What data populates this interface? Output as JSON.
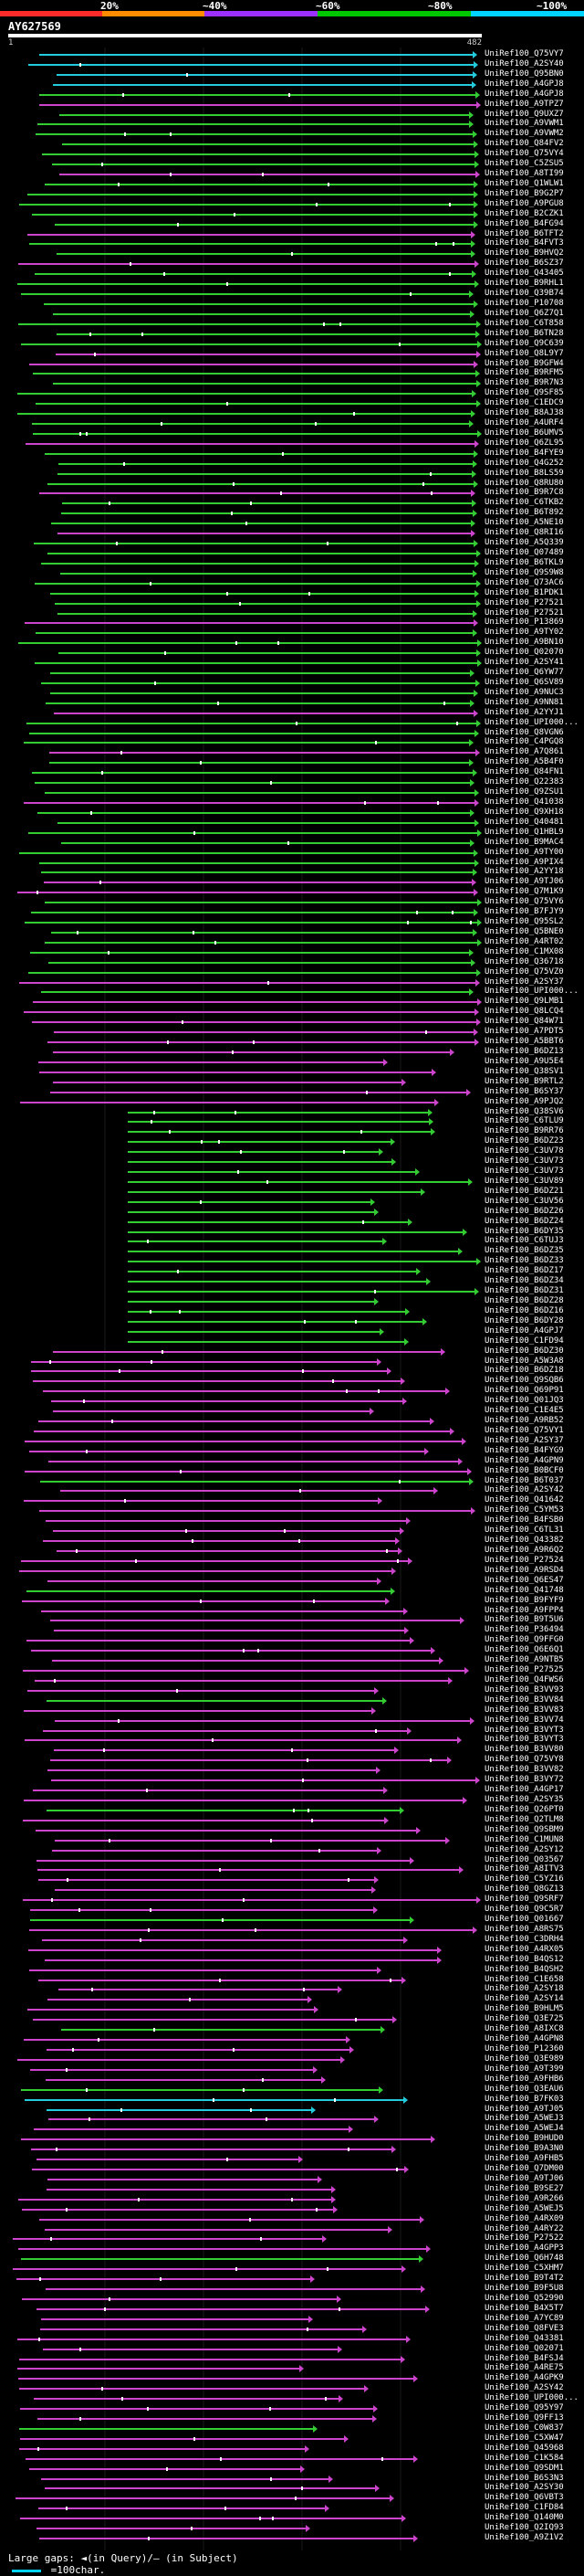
{
  "legend": {
    "pct_labels": [
      "20%",
      "~40%",
      "~60%",
      "~80%",
      "~100%"
    ],
    "colors": [
      "#ff2a2a",
      "#ff8c00",
      "#9b30ff",
      "#00c800",
      "#00d3ff"
    ]
  },
  "query": {
    "title": "AY627569",
    "start": "1",
    "end": "482"
  },
  "footer": {
    "text": "Large gaps: ◄(in Query)/– (in Subject)",
    "scale": "=100char."
  },
  "colors": {
    "green": "#33cc33",
    "magenta": "#cc44cc",
    "cyan": "#22ccdd",
    "dot": "#ffffff"
  },
  "hits": [
    "UniRef100_Q75VY7",
    "UniRef100_A2SY40",
    "UniRef100_Q95BN0",
    "UniRef100_A4GPJ8",
    "UniRef100_A4GPJ8",
    "UniRef100_A9TPZ7",
    "UniRef100_Q9UXZ7",
    "UniRef100_A9VWM1",
    "UniRef100_A9VWM2",
    "UniRef100_Q84FV2",
    "UniRef100_Q75VY4",
    "UniRef100_C5ZSU5",
    "UniRef100_A8TI99",
    "UniRef100_Q1WLW1",
    "UniRef100_B9G2P7",
    "UniRef100_A9PGU8",
    "UniRef100_B2CZK1",
    "UniRef100_B4FG94",
    "UniRef100_B6TFT2",
    "UniRef100_B4FVT3",
    "UniRef100_B9HVQ2",
    "UniRef100_B6SZ37",
    "UniRef100_Q43405",
    "UniRef100_B9RHL1",
    "UniRef100_Q39B74",
    "UniRef100_P10708",
    "UniRef100_Q6Z7Q1",
    "UniRef100_C6T858",
    "UniRef100_B6TN28",
    "UniRef100_Q9C639",
    "UniRef100_Q8L9Y7",
    "UniRef100_B9GFW4",
    "UniRef100_B9RFM5",
    "UniRef100_B9R7N3",
    "UniRef100_Q9SF85",
    "UniRef100_C1EDC9",
    "UniRef100_B8AJ38",
    "UniRef100_A4URF4",
    "UniRef100_B6UMV5",
    "UniRef100_Q6ZL95",
    "UniRef100_B4FYE9",
    "UniRef100_Q4G252",
    "UniRef100_B8LS59",
    "UniRef100_Q8RU80",
    "UniRef100_B9R7C8",
    "UniRef100_C6TKB2",
    "UniRef100_B6T892",
    "UniRef100_A5NE10",
    "UniRef100_Q8RI16",
    "UniRef100_A5Q339",
    "UniRef100_Q07489",
    "UniRef100_B6TKL9",
    "UniRef100_Q9S9W8",
    "UniRef100_Q73AC6",
    "UniRef100_B1PDK1",
    "UniRef100_P27521",
    "UniRef100_P27521",
    "UniRef100_P13869",
    "UniRef100_A9TY02",
    "UniRef100_A9BN10",
    "UniRef100_Q02070",
    "UniRef100_A2SY41",
    "UniRef100_Q6YW77",
    "UniRef100_Q6SV89",
    "UniRef100_A9NUC3",
    "UniRef100_A9NN81",
    "UniRef100_A2YYJ1",
    "UniRef100_UPI000...",
    "UniRef100_Q8VGN6",
    "UniRef100_C4PGQ8",
    "UniRef100_A7Q861",
    "UniRef100_A5B4F0",
    "UniRef100_Q84FN1",
    "UniRef100_Q22383",
    "UniRef100_Q9ZSU1",
    "UniRef100_Q41038",
    "UniRef100_Q9XH18",
    "UniRef100_Q40481",
    "UniRef100_Q1HBL9",
    "UniRef100_B9MAC4",
    "UniRef100_A9TY00",
    "UniRef100_A9PIX4",
    "UniRef100_A2YY18",
    "UniRef100_A9TJ06",
    "UniRef100_Q7M1K9",
    "UniRef100_Q75VY6",
    "UniRef100_B7FJY9",
    "UniRef100_Q95SL2",
    "UniRef100_Q5BNE0",
    "UniRef100_A4RT02",
    "UniRef100_C1MX08",
    "UniRef100_Q36718",
    "UniRef100_Q75VZ0",
    "UniRef100_A2SY37",
    "UniRef100_UPI000...",
    "UniRef100_Q9LMB1",
    "UniRef100_Q8LCQ4",
    "UniRef100_Q84W71",
    "UniRef100_A7PDT5",
    "UniRef100_A5BBT6",
    "UniRef100_B6DZ13",
    "UniRef100_A9U5E4",
    "UniRef100_Q38SV1",
    "UniRef100_B9RTL2",
    "UniRef100_B6SY37",
    "UniRef100_A9PJQ2",
    "UniRef100_Q38SV6",
    "UniRef100_C6TLU9",
    "UniRef100_B9RR76",
    "UniRef100_B6DZ23",
    "UniRef100_C3UV78",
    "UniRef100_C3UV73",
    "UniRef100_C3UV73",
    "UniRef100_C3UV89",
    "UniRef100_B6DZ21",
    "UniRef100_C3UV56",
    "UniRef100_B6DZ26",
    "UniRef100_B6DZ24",
    "UniRef100_B6DY35",
    "UniRef100_C6TUJ3",
    "UniRef100_B6DZ35",
    "UniRef100_B6DZ33",
    "UniRef100_B6DZ17",
    "UniRef100_B6DZ34",
    "UniRef100_B6DZ31",
    "UniRef100_B6DZ28",
    "UniRef100_B6DZ16",
    "UniRef100_B6DY28",
    "UniRef100_A4GPJ7",
    "UniRef100_C1FD94",
    "UniRef100_B6DZ30",
    "UniRef100_A5W3A8",
    "UniRef100_B6DZ18",
    "UniRef100_Q9SQB6",
    "UniRef100_Q69P91",
    "UniRef100_Q01JQ3",
    "UniRef100_C1E4E5",
    "UniRef100_A9RB52",
    "UniRef100_Q75VY1",
    "UniRef100_A2SY37",
    "UniRef100_B4FYG9",
    "UniRef100_A4GPN9",
    "UniRef100_B0BCF0",
    "UniRef100_B6T037",
    "UniRef100_A2SY42",
    "UniRef100_Q41642",
    "UniRef100_C5YM53",
    "UniRef100_B4FSB0",
    "UniRef100_C6TL31",
    "UniRef100_Q43382",
    "UniRef100_A9R6Q2",
    "UniRef100_P27524",
    "UniRef100_A9RSD4",
    "UniRef100_Q6ES47",
    "UniRef100_Q41748",
    "UniRef100_B9FYF9",
    "UniRef100_A9FPP4",
    "UniRef100_B9T5U6",
    "UniRef100_P36494",
    "UniRef100_Q9FFG0",
    "UniRef100_Q6E6Q1",
    "UniRef100_A9NTB5",
    "UniRef100_P27525",
    "UniRef100_Q4FWS6",
    "UniRef100_B3VV93",
    "UniRef100_B3VV84",
    "UniRef100_B3VV83",
    "UniRef100_B3VV74",
    "UniRef100_B3VYT3",
    "UniRef100_B3VYT3",
    "UniRef100_B3VV80",
    "UniRef100_Q75VY8",
    "UniRef100_B3VV82",
    "UniRef100_B3VY72",
    "UniRef100_A4GP17",
    "UniRef100_A2SY35",
    "UniRef100_Q26PT0",
    "UniRef100_Q2TLM8",
    "UniRef100_Q9SBM9",
    "UniRef100_C1MUN8",
    "UniRef100_A2SY12",
    "UniRef100_Q03567",
    "UniRef100_A8ITV3",
    "UniRef100_C5YZ16",
    "UniRef100_Q8GZ13",
    "UniRef100_Q9SRF7",
    "UniRef100_Q9C5R7",
    "UniRef100_Q01667",
    "UniRef100_A8RS75",
    "UniRef100_C3DRH4",
    "UniRef100_A4RX05",
    "UniRef100_B4QS12",
    "UniRef100_B4QSH2",
    "UniRef100_C1E658",
    "UniRef100_A2SY18",
    "UniRef100_A2SY14",
    "UniRef100_B9HLM5",
    "UniRef100_Q3E725",
    "UniRef100_A8IXC8",
    "UniRef100_A4GPN8",
    "UniRef100_P12360",
    "UniRef100_Q3E989",
    "UniRef100_A9T399",
    "UniRef100_A9FHB6",
    "UniRef100_Q3EAU6",
    "UniRef100_B7FK03",
    "UniRef100_A9TJ05",
    "UniRef100_A5WEJ3",
    "UniRef100_A5WEJ4",
    "UniRef100_B9HUD0",
    "UniRef100_B9A3N0",
    "UniRef100_A9FHB5",
    "UniRef100_Q7DM00",
    "UniRef100_A9TJ06",
    "UniRef100_B9SE27",
    "UniRef100_A9R266",
    "UniRef100_A5WEJ5",
    "UniRef100_A4RX09",
    "UniRef100_A4RY22",
    "UniRef100_P27522",
    "UniRef100_A4GPP3",
    "UniRef100_Q6H748",
    "UniRef100_C5XHM7",
    "UniRef100_B9T4T2",
    "UniRef100_B9F5U8",
    "UniRef100_Q52990",
    "UniRef100_B4X5T7",
    "UniRef100_A7YC89",
    "UniRef100_Q8FVE3",
    "UniRef100_Q43381",
    "UniRef100_Q02071",
    "UniRef100_B4FSJ4",
    "UniRef100_A4RE75",
    "UniRef100_A4GPK9",
    "UniRef100_A2SY42",
    "UniRef100_UPI000...",
    "UniRef100_Q95Y97",
    "UniRef100_Q9FF13",
    "UniRef100_C0W837",
    "UniRef100_C5XW47",
    "UniRef100_Q45968",
    "UniRef100_C1K584",
    "UniRef100_Q9SDM1",
    "UniRef100_B6S3N3",
    "UniRef100_A2SY30",
    "UniRef100_Q6VBT3",
    "UniRef100_C1FD84",
    "UniRef100_Q140M0",
    "UniRef100_Q2IQ93",
    "UniRef100_A9Z1V2"
  ]
}
